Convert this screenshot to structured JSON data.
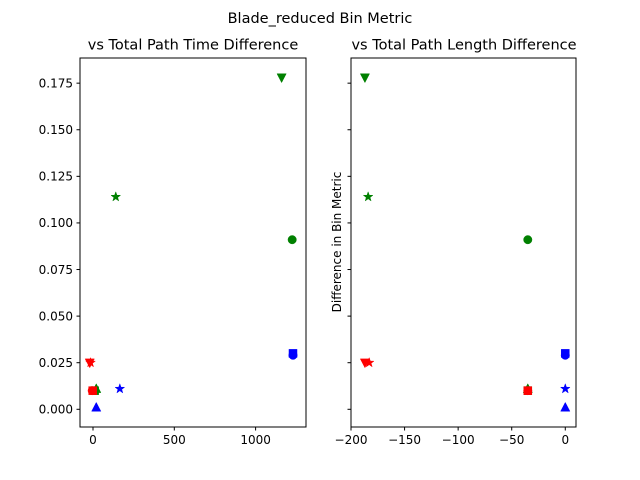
{
  "figure": {
    "suptitle": "Blade_reduced Bin Metric"
  },
  "colors": {
    "blue": "#0000ff",
    "green": "#008000",
    "red": "#ff0000"
  },
  "chart_data": [
    {
      "type": "scatter",
      "title": "vs Total Path Time Difference",
      "xlabel": "",
      "ylabel": "",
      "xlim": [
        -80,
        1310
      ],
      "ylim": [
        -0.0095,
        0.1885
      ],
      "xticks": [
        0,
        500,
        1000
      ],
      "yticks": [
        0.0,
        0.025,
        0.05,
        0.075,
        0.1,
        0.125,
        0.15,
        0.175
      ],
      "ytick_labels": [
        "0.000",
        "0.025",
        "0.050",
        "0.075",
        "0.100",
        "0.125",
        "0.150",
        "0.175"
      ],
      "show_ytick_labels": true,
      "points": [
        {
          "x": 1160,
          "y": 0.178,
          "marker": "triangle-down",
          "color": "green"
        },
        {
          "x": 140,
          "y": 0.114,
          "marker": "star",
          "color": "green"
        },
        {
          "x": 1225,
          "y": 0.091,
          "marker": "circle",
          "color": "green"
        },
        {
          "x": 20,
          "y": 0.011,
          "marker": "triangle-up",
          "color": "green"
        },
        {
          "x": 10,
          "y": 0.01,
          "marker": "square",
          "color": "green"
        },
        {
          "x": 1230,
          "y": 0.03,
          "marker": "square",
          "color": "blue"
        },
        {
          "x": 1230,
          "y": 0.029,
          "marker": "circle",
          "color": "blue"
        },
        {
          "x": 165,
          "y": 0.011,
          "marker": "star",
          "color": "blue"
        },
        {
          "x": 20,
          "y": 0.001,
          "marker": "triangle-up",
          "color": "blue"
        },
        {
          "x": -20,
          "y": 0.025,
          "marker": "triangle-down",
          "color": "red"
        },
        {
          "x": -15,
          "y": 0.025,
          "marker": "star",
          "color": "red"
        },
        {
          "x": -5,
          "y": 0.01,
          "marker": "circle",
          "color": "red"
        },
        {
          "x": -2,
          "y": 0.01,
          "marker": "square",
          "color": "red"
        }
      ]
    },
    {
      "type": "scatter",
      "title": "vs Total Path Length Difference",
      "xlabel": "",
      "ylabel": "Difference in Bin Metric",
      "xlim": [
        -200,
        10
      ],
      "ylim": [
        -0.0095,
        0.1885
      ],
      "xticks": [
        -200,
        -150,
        -100,
        -50,
        0
      ],
      "xtick_labels": [
        "−200",
        "−150",
        "−100",
        "−50",
        "0"
      ],
      "yticks": [
        0.0,
        0.025,
        0.05,
        0.075,
        0.1,
        0.125,
        0.15,
        0.175
      ],
      "show_ytick_labels": false,
      "points": [
        {
          "x": -187,
          "y": 0.178,
          "marker": "triangle-down",
          "color": "green"
        },
        {
          "x": -184,
          "y": 0.114,
          "marker": "star",
          "color": "green"
        },
        {
          "x": -35,
          "y": 0.091,
          "marker": "circle",
          "color": "green"
        },
        {
          "x": -35,
          "y": 0.011,
          "marker": "triangle-up",
          "color": "green"
        },
        {
          "x": -35,
          "y": 0.01,
          "marker": "square",
          "color": "green"
        },
        {
          "x": 0,
          "y": 0.03,
          "marker": "square",
          "color": "blue"
        },
        {
          "x": 0,
          "y": 0.029,
          "marker": "circle",
          "color": "blue"
        },
        {
          "x": 0,
          "y": 0.011,
          "marker": "star",
          "color": "blue"
        },
        {
          "x": 0,
          "y": 0.001,
          "marker": "triangle-up",
          "color": "blue"
        },
        {
          "x": -187,
          "y": 0.025,
          "marker": "triangle-down",
          "color": "red"
        },
        {
          "x": -183,
          "y": 0.025,
          "marker": "star",
          "color": "red"
        },
        {
          "x": -35,
          "y": 0.01,
          "marker": "circle",
          "color": "red"
        },
        {
          "x": -35,
          "y": 0.01,
          "marker": "square",
          "color": "red"
        }
      ]
    }
  ]
}
